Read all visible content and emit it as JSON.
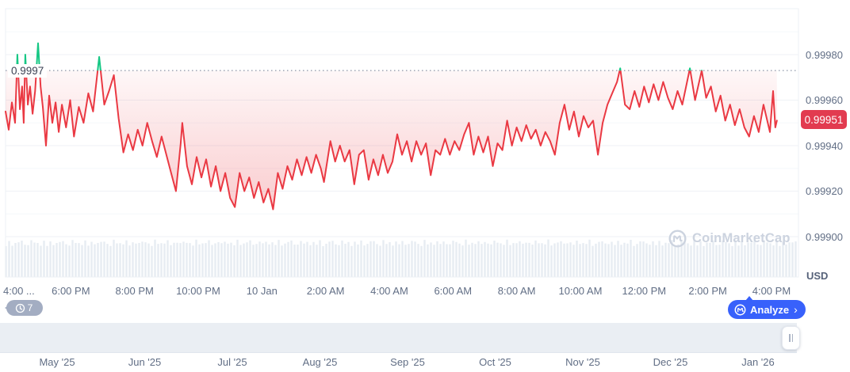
{
  "widget": {
    "watermark_text": "CoinMarketCap",
    "history_badge": {
      "count": "7"
    },
    "analyze_button": {
      "label": "Analyze",
      "chevron": "›"
    },
    "colors": {
      "line_down": "#ea3943",
      "line_up": "#16c784",
      "accent_blue": "#3861fb",
      "badge_red": "#e23b50",
      "grid_major": "#eff2f6",
      "grid_minor": "#f6f8fb",
      "axis_text": "#616e85",
      "baseline_dot": "#8d97aa",
      "volume_bar": "#e4eaf1",
      "navigator_bg": "#eaeef3"
    }
  },
  "chart_data": {
    "type": "line",
    "title": "",
    "unit": "USD",
    "current_price": "0.99951",
    "baseline": {
      "label": "0.9997",
      "value": 0.99973
    },
    "y_axis": {
      "ticks": [
        "0.99980",
        "0.99960",
        "0.99940",
        "0.99920",
        "0.99900"
      ],
      "minor_gridlines": [
        0.9999,
        0.9995,
        0.9993,
        0.9991
      ],
      "min": 0.99888,
      "max": 1.0
    },
    "x_axis": {
      "ticks": [
        "4:00 ...",
        "6:00 PM",
        "8:00 PM",
        "10:00 PM",
        "10 Jan",
        "2:00 AM",
        "4:00 AM",
        "6:00 AM",
        "8:00 AM",
        "10:00 AM",
        "12:00 PM",
        "2:00 PM",
        "4:00 PM"
      ],
      "hours_per_tick": 2
    },
    "navigator_months": [
      "May '25",
      "Jun '25",
      "Jul '25",
      "Aug '25",
      "Sep '25",
      "Oct '25",
      "Nov '25",
      "Dec '25",
      "Jan '26"
    ],
    "series": [
      {
        "name": "price-usd",
        "points": [
          [
            -0.05,
            0.99955
          ],
          [
            0.05,
            0.99947
          ],
          [
            0.15,
            0.99959
          ],
          [
            0.25,
            0.9995
          ],
          [
            0.32,
            0.9998
          ],
          [
            0.4,
            0.99956
          ],
          [
            0.47,
            0.99966
          ],
          [
            0.52,
            0.9995
          ],
          [
            0.57,
            0.9998
          ],
          [
            0.65,
            0.99958
          ],
          [
            0.72,
            0.99966
          ],
          [
            0.8,
            0.99954
          ],
          [
            0.88,
            0.99964
          ],
          [
            0.97,
            0.99985
          ],
          [
            1.05,
            0.99966
          ],
          [
            1.12,
            0.99957
          ],
          [
            1.22,
            0.9994
          ],
          [
            1.32,
            0.99962
          ],
          [
            1.42,
            0.9995
          ],
          [
            1.52,
            0.99959
          ],
          [
            1.62,
            0.99946
          ],
          [
            1.72,
            0.99958
          ],
          [
            1.85,
            0.99948
          ],
          [
            1.98,
            0.9996
          ],
          [
            2.1,
            0.99944
          ],
          [
            2.25,
            0.99957
          ],
          [
            2.4,
            0.9995
          ],
          [
            2.55,
            0.99963
          ],
          [
            2.7,
            0.99955
          ],
          [
            2.89,
            0.99979
          ],
          [
            3.05,
            0.99958
          ],
          [
            3.2,
            0.99964
          ],
          [
            3.35,
            0.99971
          ],
          [
            3.5,
            0.99952
          ],
          [
            3.65,
            0.99937
          ],
          [
            3.8,
            0.99945
          ],
          [
            3.95,
            0.99938
          ],
          [
            4.1,
            0.99947
          ],
          [
            4.25,
            0.9994
          ],
          [
            4.4,
            0.9995
          ],
          [
            4.55,
            0.99942
          ],
          [
            4.7,
            0.99935
          ],
          [
            4.85,
            0.99944
          ],
          [
            5.0,
            0.99936
          ],
          [
            5.15,
            0.99928
          ],
          [
            5.3,
            0.9992
          ],
          [
            5.45,
            0.99941
          ],
          [
            5.5,
            0.9995
          ],
          [
            5.65,
            0.99931
          ],
          [
            5.8,
            0.99923
          ],
          [
            5.95,
            0.99935
          ],
          [
            6.1,
            0.99926
          ],
          [
            6.25,
            0.99934
          ],
          [
            6.4,
            0.99922
          ],
          [
            6.55,
            0.99931
          ],
          [
            6.7,
            0.9992
          ],
          [
            6.85,
            0.99928
          ],
          [
            7.0,
            0.99917
          ],
          [
            7.15,
            0.99913
          ],
          [
            7.3,
            0.99928
          ],
          [
            7.45,
            0.9992
          ],
          [
            7.6,
            0.99926
          ],
          [
            7.75,
            0.99917
          ],
          [
            7.9,
            0.99924
          ],
          [
            8.05,
            0.99915
          ],
          [
            8.2,
            0.99921
          ],
          [
            8.35,
            0.99912
          ],
          [
            8.5,
            0.99928
          ],
          [
            8.65,
            0.99921
          ],
          [
            8.8,
            0.99931
          ],
          [
            8.95,
            0.99925
          ],
          [
            9.1,
            0.99934
          ],
          [
            9.25,
            0.99927
          ],
          [
            9.4,
            0.99935
          ],
          [
            9.55,
            0.99928
          ],
          [
            9.7,
            0.99936
          ],
          [
            9.85,
            0.9993
          ],
          [
            9.95,
            0.99924
          ],
          [
            10.15,
            0.99942
          ],
          [
            10.3,
            0.99933
          ],
          [
            10.45,
            0.9994
          ],
          [
            10.6,
            0.99933
          ],
          [
            10.75,
            0.99938
          ],
          [
            10.9,
            0.99923
          ],
          [
            11.05,
            0.99936
          ],
          [
            11.2,
            0.99938
          ],
          [
            11.35,
            0.99925
          ],
          [
            11.5,
            0.99934
          ],
          [
            11.65,
            0.99927
          ],
          [
            11.8,
            0.99936
          ],
          [
            11.95,
            0.99928
          ],
          [
            12.1,
            0.99933
          ],
          [
            12.25,
            0.99945
          ],
          [
            12.4,
            0.99936
          ],
          [
            12.55,
            0.99942
          ],
          [
            12.7,
            0.99933
          ],
          [
            12.85,
            0.99942
          ],
          [
            13.0,
            0.99936
          ],
          [
            13.15,
            0.99941
          ],
          [
            13.3,
            0.99927
          ],
          [
            13.45,
            0.99938
          ],
          [
            13.6,
            0.99936
          ],
          [
            13.75,
            0.99943
          ],
          [
            13.9,
            0.99936
          ],
          [
            14.05,
            0.99942
          ],
          [
            14.2,
            0.99938
          ],
          [
            14.35,
            0.99945
          ],
          [
            14.5,
            0.9995
          ],
          [
            14.65,
            0.99936
          ],
          [
            14.8,
            0.99944
          ],
          [
            14.95,
            0.99937
          ],
          [
            15.1,
            0.99944
          ],
          [
            15.25,
            0.99931
          ],
          [
            15.4,
            0.99941
          ],
          [
            15.55,
            0.99938
          ],
          [
            15.7,
            0.99951
          ],
          [
            15.85,
            0.9994
          ],
          [
            16.0,
            0.99948
          ],
          [
            16.15,
            0.99942
          ],
          [
            16.3,
            0.99949
          ],
          [
            16.45,
            0.99943
          ],
          [
            16.6,
            0.99947
          ],
          [
            16.75,
            0.9994
          ],
          [
            16.9,
            0.99946
          ],
          [
            17.05,
            0.99942
          ],
          [
            17.2,
            0.99936
          ],
          [
            17.35,
            0.9995
          ],
          [
            17.5,
            0.99958
          ],
          [
            17.65,
            0.99947
          ],
          [
            17.8,
            0.99955
          ],
          [
            17.95,
            0.99944
          ],
          [
            18.1,
            0.99953
          ],
          [
            18.25,
            0.99948
          ],
          [
            18.4,
            0.99951
          ],
          [
            18.55,
            0.99936
          ],
          [
            18.7,
            0.9995
          ],
          [
            18.85,
            0.99958
          ],
          [
            19.0,
            0.99963
          ],
          [
            19.15,
            0.99968
          ],
          [
            19.25,
            0.99974
          ],
          [
            19.4,
            0.99958
          ],
          [
            19.55,
            0.99956
          ],
          [
            19.7,
            0.99964
          ],
          [
            19.85,
            0.99957
          ],
          [
            20.0,
            0.99966
          ],
          [
            20.15,
            0.99959
          ],
          [
            20.3,
            0.99967
          ],
          [
            20.45,
            0.9996
          ],
          [
            20.6,
            0.99968
          ],
          [
            20.75,
            0.99961
          ],
          [
            20.9,
            0.99956
          ],
          [
            21.05,
            0.99964
          ],
          [
            21.2,
            0.99958
          ],
          [
            21.44,
            0.99974
          ],
          [
            21.6,
            0.9996
          ],
          [
            21.81,
            0.99973
          ],
          [
            21.95,
            0.99961
          ],
          [
            22.1,
            0.99966
          ],
          [
            22.25,
            0.99955
          ],
          [
            22.4,
            0.99962
          ],
          [
            22.55,
            0.99951
          ],
          [
            22.7,
            0.99958
          ],
          [
            22.85,
            0.99949
          ],
          [
            23.0,
            0.99956
          ],
          [
            23.15,
            0.99948
          ],
          [
            23.3,
            0.99944
          ],
          [
            23.45,
            0.99953
          ],
          [
            23.6,
            0.99946
          ],
          [
            23.75,
            0.99958
          ],
          [
            23.95,
            0.99946
          ],
          [
            24.05,
            0.99964
          ],
          [
            24.12,
            0.99948
          ],
          [
            24.17,
            0.99951
          ]
        ]
      }
    ]
  }
}
